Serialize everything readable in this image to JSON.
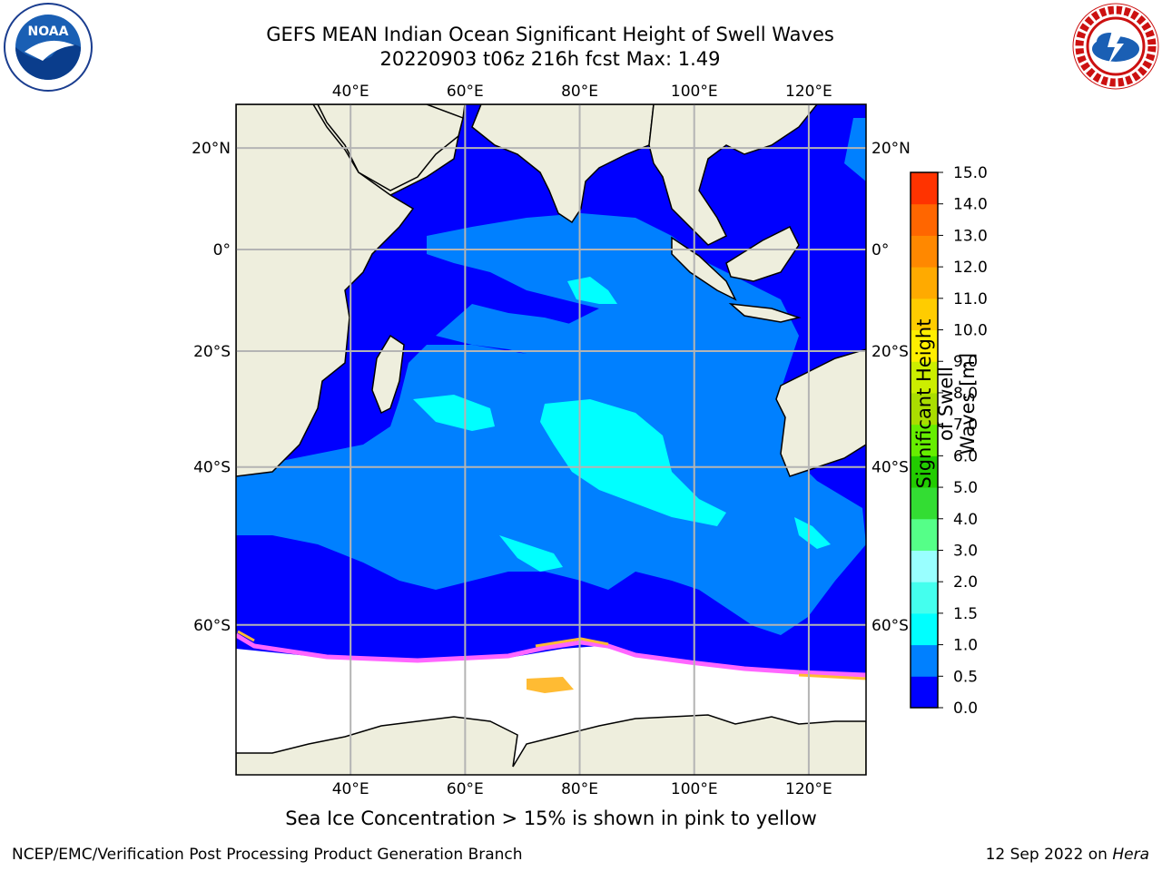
{
  "header": {
    "title_line1": "GEFS MEAN Indian Ocean Significant Height of Swell Waves",
    "title_line2": "20220903 t06z 216h fcst   Max: 1.49"
  },
  "logos": {
    "left": "noaa-logo",
    "right": "nws-logo"
  },
  "map": {
    "lon_labels": [
      "40°E",
      "60°E",
      "80°E",
      "100°E",
      "120°E"
    ],
    "lat_labels": [
      "20°N",
      "0°",
      "20°S",
      "40°S",
      "60°S"
    ],
    "lon_values": [
      40,
      60,
      80,
      100,
      120
    ],
    "lat_values": [
      20,
      0,
      -20,
      -40,
      -60
    ],
    "extent": {
      "lon_min": 20,
      "lon_max": 130,
      "lat_min": -72,
      "lat_max": 28
    },
    "colors": {
      "land": "#eeeedd",
      "ocean_low": "#0000ff",
      "ocean_mid": "#0080ff",
      "swell_high": "#00ffff",
      "sea_ice_free": "#ffffff",
      "ice_pink": "#ff66ff",
      "ice_yellow": "#ffbb33",
      "grid": "#b4b4b4"
    }
  },
  "colorbar": {
    "title_line1": "Significant Height of Swell",
    "title_line2": "Waves [m]",
    "tick_labels": [
      "0.0",
      "0.5",
      "1.0",
      "1.5",
      "2.0",
      "3.0",
      "4.0",
      "5.0",
      "6.0",
      "7.0",
      "8.0",
      "9.0",
      "10.0",
      "11.0",
      "12.0",
      "13.0",
      "14.0",
      "15.0"
    ],
    "colors": [
      "#0000ff",
      "#0080ff",
      "#00ffff",
      "#44ffee",
      "#99ffff",
      "#55ff88",
      "#33dd33",
      "#22cc00",
      "#66ee00",
      "#aadd00",
      "#ccee00",
      "#ffee00",
      "#ffcc00",
      "#ffaa00",
      "#ff8800",
      "#ff6600",
      "#ff3300",
      "#ff0000"
    ]
  },
  "caption": "Sea Ice Concentration > 15% is shown in pink to yellow",
  "footer": {
    "left": "NCEP/EMC/Verification Post Processing Product Generation Branch",
    "right_prefix": "12 Sep 2022 on",
    "right_host": "Hera"
  }
}
